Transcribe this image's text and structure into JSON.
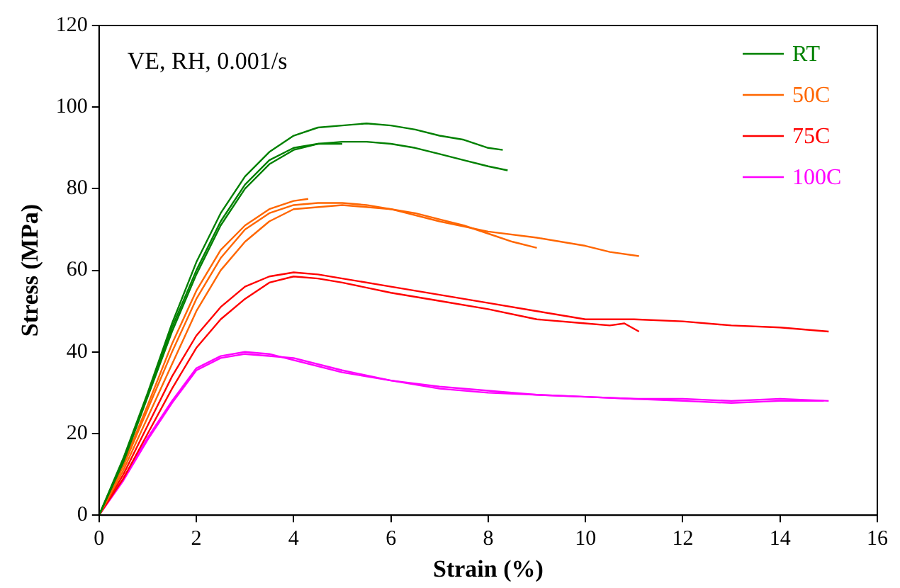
{
  "chart_data": {
    "type": "line",
    "xlabel": "Strain (%)",
    "ylabel": "Stress (MPa)",
    "annotations": [
      "VE, RH, 0.001/s"
    ],
    "xlim": [
      0,
      16
    ],
    "xticks": [
      0,
      2,
      4,
      6,
      8,
      10,
      12,
      14,
      16
    ],
    "ylim": [
      0,
      120
    ],
    "yticks": [
      0,
      20,
      40,
      60,
      80,
      100,
      120
    ],
    "grid": false,
    "legend": "top right",
    "marker": "none",
    "line_style": "solid",
    "series": [
      {
        "name": "RT",
        "color": "#008000",
        "x": [
          0,
          0.5,
          1,
          1.5,
          2,
          2.5,
          3,
          3.5,
          4,
          4.5,
          5,
          5.5,
          6,
          6.5,
          7,
          7.5,
          8,
          8.3
        ],
        "values": [
          0,
          14,
          30,
          47,
          62,
          74,
          83,
          89,
          93,
          95,
          95.5,
          96,
          95.5,
          94.5,
          93,
          92,
          90,
          89.5
        ]
      },
      {
        "color": "#008000",
        "x": [
          0,
          0.5,
          1,
          1.5,
          2,
          2.5,
          3,
          3.5,
          4,
          4.5,
          5,
          5.5,
          6,
          6.5,
          7,
          7.5,
          8,
          8.4
        ],
        "values": [
          0,
          13,
          29,
          45,
          59,
          71,
          80,
          86,
          89.5,
          91,
          91.5,
          91.5,
          91,
          90,
          88.5,
          87,
          85.5,
          84.5
        ]
      },
      {
        "color": "#008000",
        "x": [
          0,
          0.5,
          1,
          1.5,
          2,
          2.5,
          3,
          3.5,
          4,
          4.5,
          5
        ],
        "values": [
          0,
          13.5,
          29.5,
          46,
          60,
          72,
          81,
          87,
          90,
          91,
          91
        ]
      },
      {
        "name": "50C",
        "color": "#ff6600",
        "x": [
          0,
          0.5,
          1,
          1.5,
          2,
          2.5,
          3,
          3.5,
          4,
          4.5,
          5,
          5.5,
          6,
          6.5,
          7,
          7.5,
          8,
          8.5,
          9
        ],
        "values": [
          0,
          12,
          26,
          40,
          53,
          63,
          70,
          74,
          76,
          76.5,
          76.5,
          76,
          75,
          74,
          72.5,
          71,
          69,
          67,
          65.5
        ]
      },
      {
        "color": "#ff6600",
        "x": [
          0,
          0.5,
          1,
          1.5,
          2,
          2.5,
          3,
          3.5,
          4,
          5,
          6,
          7,
          8,
          9,
          10,
          10.5,
          11.1
        ],
        "values": [
          0,
          11,
          24,
          37,
          50,
          60,
          67,
          72,
          75,
          76,
          75,
          72,
          69.5,
          68,
          66,
          64.5,
          63.5
        ]
      },
      {
        "color": "#ff6600",
        "x": [
          0,
          0.5,
          1,
          1.5,
          2,
          2.5,
          3,
          3.5,
          4,
          4.3
        ],
        "values": [
          0,
          12.5,
          27,
          42,
          55,
          65,
          71,
          75,
          77,
          77.5
        ]
      },
      {
        "name": "75C",
        "color": "#ff0000",
        "x": [
          0,
          0.5,
          1,
          1.5,
          2,
          2.5,
          3,
          3.5,
          4,
          4.5,
          5,
          6,
          7,
          8,
          9,
          10,
          11,
          12,
          13,
          14,
          15
        ],
        "values": [
          0,
          10,
          22,
          34,
          44,
          51,
          56,
          58.5,
          59.5,
          59,
          58,
          56,
          54,
          52,
          50,
          48,
          48,
          47.5,
          46.5,
          46,
          45
        ]
      },
      {
        "color": "#ff0000",
        "x": [
          0,
          0.5,
          1,
          1.5,
          2,
          2.5,
          3,
          3.5,
          4,
          4.5,
          5,
          6,
          7,
          8,
          9,
          10,
          10.5,
          10.8,
          11.1
        ],
        "values": [
          0,
          9,
          20,
          31,
          41,
          48,
          53,
          57,
          58.5,
          58,
          57,
          54.5,
          52.5,
          50.5,
          48,
          47,
          46.5,
          47,
          45
        ]
      },
      {
        "name": "100C",
        "color": "#ff00ff",
        "x": [
          0,
          0.5,
          1,
          1.5,
          2,
          2.5,
          3,
          3.5,
          4,
          5,
          6,
          7,
          8,
          9,
          10,
          11,
          12,
          13,
          14,
          15
        ],
        "values": [
          0,
          9,
          19,
          28,
          36,
          39,
          40,
          39.5,
          38,
          35,
          33,
          31.5,
          30.5,
          29.5,
          29,
          28.5,
          28.5,
          28,
          28.5,
          28
        ]
      },
      {
        "color": "#ff00ff",
        "x": [
          0,
          0.5,
          1,
          1.5,
          2,
          2.5,
          3,
          3.5,
          4,
          5,
          6,
          7,
          8,
          9,
          10,
          11,
          12,
          13,
          14,
          14.9
        ],
        "values": [
          0,
          8.5,
          18.5,
          27.5,
          35.5,
          38.5,
          39.5,
          39,
          38.5,
          35.5,
          33,
          31,
          30,
          29.5,
          29,
          28.5,
          28,
          27.5,
          28,
          28
        ]
      }
    ]
  }
}
